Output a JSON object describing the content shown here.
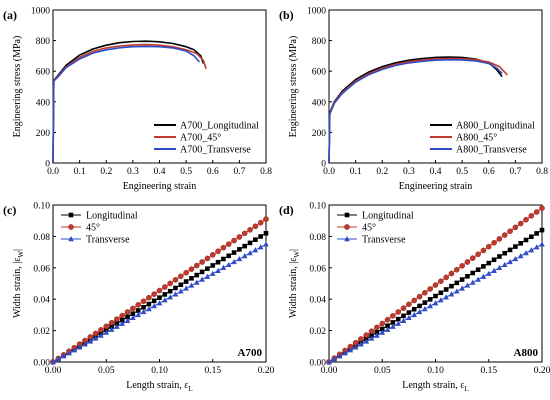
{
  "chart_data": [
    {
      "panel_label": "(a)",
      "type": "line",
      "xlabel": "Engineering strain",
      "ylabel": "Engineering stress (MPa)",
      "xlim": [
        0,
        0.8
      ],
      "ylim": [
        0,
        1000
      ],
      "xticks": [
        "0.0",
        "0.1",
        "0.2",
        "0.3",
        "0.4",
        "0.5",
        "0.6",
        "0.7",
        "0.8"
      ],
      "yticks": [
        "0",
        "200",
        "400",
        "600",
        "800",
        "1000"
      ],
      "grid": false,
      "legend_position": "bottom-right",
      "series": [
        {
          "name": "A700_Longitudinal",
          "color": "#000000",
          "points": [
            [
              0,
              0
            ],
            [
              0.003,
              540
            ],
            [
              0.02,
              575
            ],
            [
              0.05,
              640
            ],
            [
              0.1,
              705
            ],
            [
              0.15,
              745
            ],
            [
              0.2,
              770
            ],
            [
              0.25,
              786
            ],
            [
              0.3,
              794
            ],
            [
              0.35,
              796
            ],
            [
              0.4,
              792
            ],
            [
              0.45,
              781
            ],
            [
              0.5,
              760
            ],
            [
              0.53,
              740
            ],
            [
              0.555,
              700
            ],
            [
              0.565,
              650
            ]
          ]
        },
        {
          "name": "A700_45°",
          "color": "#c0392b",
          "points": [
            [
              0,
              0
            ],
            [
              0.003,
              540
            ],
            [
              0.02,
              570
            ],
            [
              0.05,
              630
            ],
            [
              0.1,
              690
            ],
            [
              0.15,
              730
            ],
            [
              0.2,
              752
            ],
            [
              0.25,
              765
            ],
            [
              0.3,
              772
            ],
            [
              0.35,
              774
            ],
            [
              0.4,
              770
            ],
            [
              0.45,
              760
            ],
            [
              0.5,
              740
            ],
            [
              0.54,
              715
            ],
            [
              0.565,
              670
            ],
            [
              0.575,
              615
            ]
          ]
        },
        {
          "name": "A700_Transverse",
          "color": "#2e4cc8",
          "points": [
            [
              0,
              0
            ],
            [
              0.003,
              535
            ],
            [
              0.02,
              565
            ],
            [
              0.05,
              625
            ],
            [
              0.1,
              680
            ],
            [
              0.15,
              718
            ],
            [
              0.2,
              740
            ],
            [
              0.25,
              753
            ],
            [
              0.3,
              760
            ],
            [
              0.35,
              762
            ],
            [
              0.4,
              760
            ],
            [
              0.45,
              752
            ],
            [
              0.5,
              732
            ],
            [
              0.53,
              700
            ],
            [
              0.55,
              660
            ]
          ]
        }
      ]
    },
    {
      "panel_label": "(b)",
      "type": "line",
      "xlabel": "Engineering strain",
      "ylabel": "Engineering stress (MPa)",
      "xlim": [
        0,
        0.8
      ],
      "ylim": [
        0,
        1000
      ],
      "xticks": [
        "0.0",
        "0.1",
        "0.2",
        "0.3",
        "0.4",
        "0.5",
        "0.6",
        "0.7",
        "0.8"
      ],
      "yticks": [
        "0",
        "200",
        "400",
        "600",
        "800",
        "1000"
      ],
      "grid": false,
      "legend_position": "bottom-right",
      "series": [
        {
          "name": "A800_Longitudinal",
          "color": "#000000",
          "points": [
            [
              0,
              0
            ],
            [
              0.003,
              330
            ],
            [
              0.02,
              400
            ],
            [
              0.05,
              470
            ],
            [
              0.1,
              545
            ],
            [
              0.15,
              595
            ],
            [
              0.2,
              630
            ],
            [
              0.25,
              655
            ],
            [
              0.3,
              672
            ],
            [
              0.35,
              683
            ],
            [
              0.4,
              690
            ],
            [
              0.45,
              692
            ],
            [
              0.5,
              690
            ],
            [
              0.55,
              680
            ],
            [
              0.6,
              655
            ],
            [
              0.63,
              610
            ],
            [
              0.65,
              565
            ]
          ]
        },
        {
          "name": "A800_45°",
          "color": "#c0392b",
          "points": [
            [
              0,
              0
            ],
            [
              0.003,
              325
            ],
            [
              0.02,
              395
            ],
            [
              0.05,
              462
            ],
            [
              0.1,
              535
            ],
            [
              0.15,
              585
            ],
            [
              0.2,
              620
            ],
            [
              0.25,
              645
            ],
            [
              0.3,
              662
            ],
            [
              0.35,
              673
            ],
            [
              0.4,
              680
            ],
            [
              0.45,
              683
            ],
            [
              0.5,
              682
            ],
            [
              0.55,
              676
            ],
            [
              0.6,
              660
            ],
            [
              0.64,
              630
            ],
            [
              0.67,
              575
            ]
          ]
        },
        {
          "name": "A800_Transverse",
          "color": "#2e4cc8",
          "points": [
            [
              0,
              0
            ],
            [
              0.003,
              320
            ],
            [
              0.02,
              390
            ],
            [
              0.05,
              455
            ],
            [
              0.1,
              528
            ],
            [
              0.15,
              578
            ],
            [
              0.2,
              612
            ],
            [
              0.25,
              637
            ],
            [
              0.3,
              654
            ],
            [
              0.35,
              665
            ],
            [
              0.4,
              672
            ],
            [
              0.45,
              675
            ],
            [
              0.5,
              674
            ],
            [
              0.55,
              667
            ],
            [
              0.6,
              650
            ],
            [
              0.63,
              620
            ],
            [
              0.65,
              585
            ]
          ]
        }
      ]
    },
    {
      "panel_label": "(c)",
      "type": "line",
      "annotation": "A700",
      "xlabel": "Length strain, ε",
      "xlabel_sub": "L",
      "ylabel": "Width strain, |ε",
      "ylabel_sub": "W",
      "ylabel_end": "|",
      "xlim": [
        0,
        0.2
      ],
      "ylim": [
        0,
        0.1
      ],
      "xticks": [
        "0.00",
        "0.05",
        "0.10",
        "0.15",
        "0.20"
      ],
      "yticks": [
        "0.00",
        "0.02",
        "0.04",
        "0.06",
        "0.08",
        "0.10"
      ],
      "grid": false,
      "legend_position": "top-left",
      "series": [
        {
          "name": "Longitudinal",
          "color": "#000000",
          "marker": "square",
          "x_end": 0.2,
          "y_end": 0.082
        },
        {
          "name": "45°",
          "color": "#c0392b",
          "marker": "circle",
          "x_end": 0.2,
          "y_end": 0.091
        },
        {
          "name": "Transverse",
          "color": "#2e4cc8",
          "marker": "triangle",
          "x_end": 0.2,
          "y_end": 0.075
        }
      ]
    },
    {
      "panel_label": "(d)",
      "type": "line",
      "annotation": "A800",
      "xlabel": "Length strain, ε",
      "xlabel_sub": "L",
      "ylabel": "Width strain, |ε",
      "ylabel_sub": "W",
      "ylabel_end": "|",
      "xlim": [
        0,
        0.2
      ],
      "ylim": [
        0,
        0.1
      ],
      "xticks": [
        "0.00",
        "0.05",
        "0.10",
        "0.15",
        "0.20"
      ],
      "yticks": [
        "0.00",
        "0.02",
        "0.04",
        "0.06",
        "0.08",
        "0.10"
      ],
      "grid": false,
      "legend_position": "top-left",
      "series": [
        {
          "name": "Longitudinal",
          "color": "#000000",
          "marker": "square",
          "x_end": 0.2,
          "y_end": 0.084
        },
        {
          "name": "45°",
          "color": "#c0392b",
          "marker": "circle",
          "x_end": 0.2,
          "y_end": 0.098
        },
        {
          "name": "Transverse",
          "color": "#2e4cc8",
          "marker": "triangle",
          "x_end": 0.2,
          "y_end": 0.075
        }
      ]
    }
  ]
}
